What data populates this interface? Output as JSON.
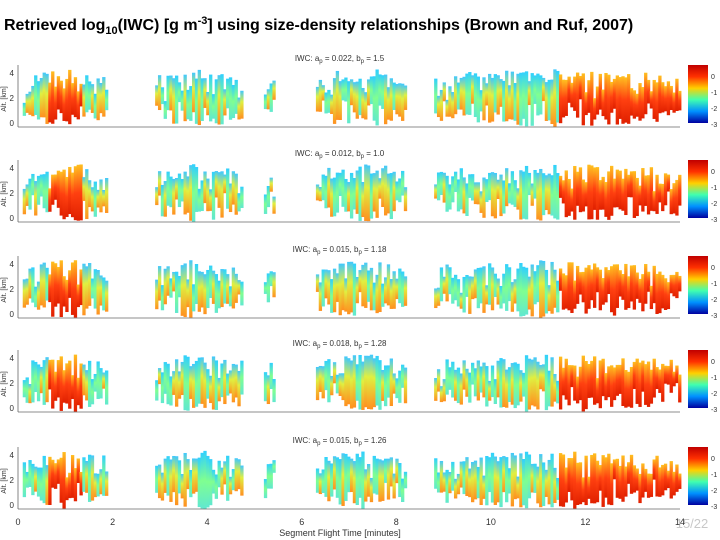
{
  "header": {
    "title": [
      "Retrieved log",
      "10",
      "(IWC) [g m",
      "-3",
      "] using size-density relationships (Brown and Ruf, 2007)"
    ]
  },
  "panels": [
    {
      "label": [
        "IWC: a",
        "p",
        " = 0.022, b",
        "p",
        " = 1.5"
      ],
      "y_label": "Alt. [km]",
      "yticks": [
        "4",
        "2",
        "0"
      ],
      "colorbar_ticks": [
        "0",
        "-1",
        "-2",
        "-3"
      ]
    },
    {
      "label": [
        "IWC: a",
        "p",
        " = 0.012, b",
        "p",
        " = 1.0"
      ],
      "y_label": "Alt. [km]",
      "yticks": [
        "4",
        "2",
        "0"
      ],
      "colorbar_ticks": [
        "0",
        "-1",
        "-2",
        "-3"
      ]
    },
    {
      "label": [
        "IWC: a",
        "p",
        " = 0.015, b",
        "p",
        " = 1.18"
      ],
      "y_label": "Alt. [km]",
      "yticks": [
        "4",
        "2",
        "0"
      ],
      "colorbar_ticks": [
        "0",
        "-1",
        "-2",
        "-3"
      ]
    },
    {
      "label": [
        "IWC: a",
        "p",
        " = 0.018, b",
        "p",
        " = 1.28"
      ],
      "y_label": "Alt. [km]",
      "yticks": [
        "4",
        "2",
        "0"
      ],
      "colorbar_ticks": [
        "0",
        "-1",
        "-2",
        "-3"
      ]
    },
    {
      "label": [
        "IWC: a",
        "p",
        " = 0.015, b",
        "p",
        " = 1.26"
      ],
      "y_label": "Alt. [km]",
      "yticks": [
        "4",
        "2",
        "0"
      ],
      "colorbar_ticks": [
        "0",
        "-1",
        "-2",
        "-3"
      ]
    }
  ],
  "x_axis": {
    "ticks": [
      "0",
      "2",
      "4",
      "6",
      "8",
      "10",
      "12",
      "14"
    ],
    "label": "Segment Flight Time [minutes]"
  },
  "footer": {
    "page": "15/22"
  }
}
